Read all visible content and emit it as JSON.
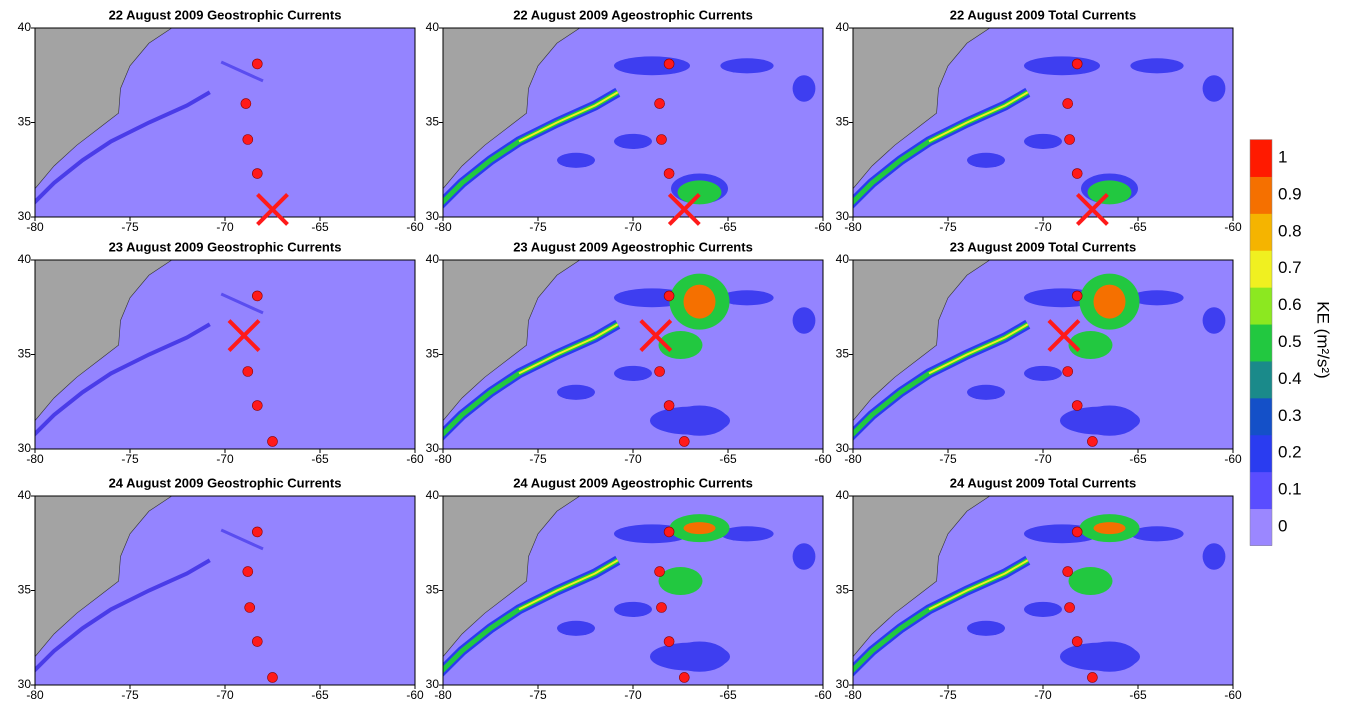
{
  "chart_data": [
    {
      "type": "map",
      "title": "22 August 2009 Geostrophic Currents",
      "xlim": [
        -80,
        -60
      ],
      "ylim": [
        30,
        40
      ],
      "xticks": [
        -80,
        -75,
        -70,
        -65,
        -60
      ],
      "yticks": [
        30,
        35,
        40
      ],
      "ocean_color": "#9484ff",
      "land_color": "#a3a3a3",
      "points": {
        "color": "#ff1a1a",
        "x": [
          -68.3,
          -68.9,
          -68.8,
          -68.3
        ],
        "y": [
          38.1,
          36,
          34.1,
          32.3
        ]
      },
      "cross": {
        "x": -67.5,
        "y": 30.4
      }
    },
    {
      "type": "map",
      "title": "22 August 2009 Ageostrophic Currents",
      "xlim": [
        -80,
        -60
      ],
      "ylim": [
        30,
        40
      ],
      "xticks": [
        -80,
        -75,
        -70,
        -65,
        -60
      ],
      "yticks": [
        30,
        35,
        40
      ],
      "ocean_color": "#9484ff",
      "land_color": "#a3a3a3",
      "points": {
        "color": "#ff1a1a",
        "x": [
          -68.1,
          -68.6,
          -68.5,
          -68.1
        ],
        "y": [
          38.1,
          36,
          34.1,
          32.3
        ]
      },
      "cross": {
        "x": -67.3,
        "y": 30.4
      }
    },
    {
      "type": "map",
      "title": "22 August 2009 Total Currents",
      "xlim": [
        -80,
        -60
      ],
      "ylim": [
        30,
        40
      ],
      "xticks": [
        -80,
        -75,
        -70,
        -65,
        -60
      ],
      "yticks": [
        30,
        35,
        40
      ],
      "ocean_color": "#9484ff",
      "land_color": "#a3a3a3",
      "points": {
        "color": "#ff1a1a",
        "x": [
          -68.2,
          -68.7,
          -68.6,
          -68.2
        ],
        "y": [
          38.1,
          36,
          34.1,
          32.3
        ]
      },
      "cross": {
        "x": -67.4,
        "y": 30.4
      }
    },
    {
      "type": "map",
      "title": "23 August 2009 Geostrophic Currents",
      "xlim": [
        -80,
        -60
      ],
      "ylim": [
        30,
        40
      ],
      "xticks": [
        -80,
        -75,
        -70,
        -65,
        -60
      ],
      "yticks": [
        30,
        35,
        40
      ],
      "ocean_color": "#9484ff",
      "land_color": "#a3a3a3",
      "points": {
        "color": "#ff1a1a",
        "x": [
          -68.3,
          -68.8,
          -68.3,
          -67.5
        ],
        "y": [
          38.1,
          34.1,
          32.3,
          30.4
        ]
      },
      "cross": {
        "x": -69,
        "y": 36
      }
    },
    {
      "type": "map",
      "title": "23 August 2009 Ageostrophic Currents",
      "xlim": [
        -80,
        -60
      ],
      "ylim": [
        30,
        40
      ],
      "xticks": [
        -80,
        -75,
        -70,
        -65,
        -60
      ],
      "yticks": [
        30,
        35,
        40
      ],
      "ocean_color": "#9484ff",
      "land_color": "#a3a3a3",
      "points": {
        "color": "#ff1a1a",
        "x": [
          -68.1,
          -68.6,
          -68.1,
          -67.3
        ],
        "y": [
          38.1,
          34.1,
          32.3,
          30.4
        ]
      },
      "cross": {
        "x": -68.8,
        "y": 36
      }
    },
    {
      "type": "map",
      "title": "23 August 2009 Total Currents",
      "xlim": [
        -80,
        -60
      ],
      "ylim": [
        30,
        40
      ],
      "xticks": [
        -80,
        -75,
        -70,
        -65,
        -60
      ],
      "yticks": [
        30,
        35,
        40
      ],
      "ocean_color": "#9484ff",
      "land_color": "#a3a3a3",
      "points": {
        "color": "#ff1a1a",
        "x": [
          -68.2,
          -68.7,
          -68.2,
          -67.4
        ],
        "y": [
          38.1,
          34.1,
          32.3,
          30.4
        ]
      },
      "cross": {
        "x": -68.9,
        "y": 36
      }
    },
    {
      "type": "map",
      "title": "24 August 2009 Geostrophic Currents",
      "xlim": [
        -80,
        -60
      ],
      "ylim": [
        30,
        40
      ],
      "xticks": [
        -80,
        -75,
        -70,
        -65,
        -60
      ],
      "yticks": [
        30,
        35,
        40
      ],
      "ocean_color": "#9484ff",
      "land_color": "#a3a3a3",
      "points": {
        "color": "#ff1a1a",
        "x": [
          -68.3,
          -68.8,
          -68.7,
          -68.3,
          -67.5
        ],
        "y": [
          38.1,
          36,
          34.1,
          32.3,
          30.4
        ]
      }
    },
    {
      "type": "map",
      "title": "24 August 2009 Ageostrophic Currents",
      "xlim": [
        -80,
        -60
      ],
      "ylim": [
        30,
        40
      ],
      "xticks": [
        -80,
        -75,
        -70,
        -65,
        -60
      ],
      "yticks": [
        30,
        35,
        40
      ],
      "ocean_color": "#9484ff",
      "land_color": "#a3a3a3",
      "points": {
        "color": "#ff1a1a",
        "x": [
          -68.1,
          -68.6,
          -68.5,
          -68.1,
          -67.3
        ],
        "y": [
          38.1,
          36,
          34.1,
          32.3,
          30.4
        ]
      }
    },
    {
      "type": "map",
      "title": "24 August 2009 Total Currents",
      "xlim": [
        -80,
        -60
      ],
      "ylim": [
        30,
        40
      ],
      "xticks": [
        -80,
        -75,
        -70,
        -65,
        -60
      ],
      "yticks": [
        30,
        35,
        40
      ],
      "ocean_color": "#9484ff",
      "land_color": "#a3a3a3",
      "points": {
        "color": "#ff1a1a",
        "x": [
          -68.2,
          -68.7,
          -68.6,
          -68.2,
          -67.4
        ],
        "y": [
          38.1,
          36,
          34.1,
          32.3,
          30.4
        ]
      }
    }
  ],
  "colorbar": {
    "label": "KE (m²/s²)",
    "lim": [
      0,
      1
    ],
    "ticks": [
      0,
      0.1,
      0.2,
      0.3,
      0.4,
      0.5,
      0.6,
      0.7,
      0.8,
      0.9,
      1
    ],
    "colors": [
      "#9b87ff",
      "#5a4dff",
      "#2a3cf0",
      "#1450c8",
      "#1a8a8a",
      "#22c840",
      "#8ce820",
      "#f0f020",
      "#f5b400",
      "#f57000",
      "#ff1a00"
    ]
  }
}
